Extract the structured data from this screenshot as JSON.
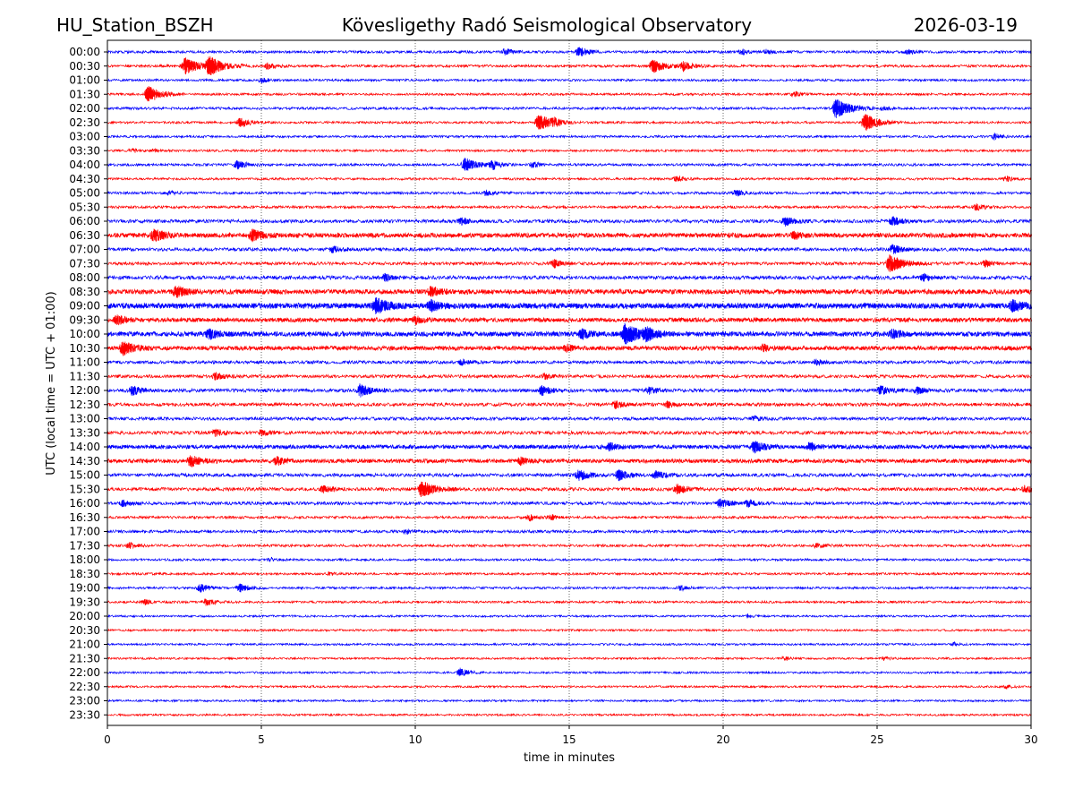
{
  "header": {
    "station": "HU_Station_BSZH",
    "observatory": "Kövesligethy Radó Seismological Observatory",
    "date": "2026-03-19"
  },
  "chart_data": {
    "type": "line",
    "title": "Kövesligethy Radó Seismological Observatory",
    "xlabel": "time in minutes",
    "ylabel": "UTC (local time = UTC + 01:00)",
    "xlim": [
      0,
      30
    ],
    "x_ticks": [
      "0",
      "5",
      "10",
      "15",
      "20",
      "25",
      "30"
    ],
    "x_tick_values": [
      0,
      5,
      10,
      15,
      20,
      25,
      30
    ],
    "vertical_gridlines_at": [
      5,
      10,
      15,
      20,
      25
    ],
    "colors": {
      "even_rows": "#0000ff",
      "odd_rows": "#ff0000"
    },
    "rows": [
      {
        "label": "00:00",
        "noise": 0.2,
        "events": [
          [
            12.9,
            0.6
          ],
          [
            15.3,
            0.9
          ],
          [
            20.6,
            0.5
          ],
          [
            21.4,
            0.4
          ],
          [
            26.0,
            0.4
          ]
        ]
      },
      {
        "label": "00:30",
        "noise": 0.2,
        "events": [
          [
            2.5,
            1.6
          ],
          [
            3.3,
            1.7
          ],
          [
            5.2,
            0.6
          ],
          [
            17.7,
            1.3
          ],
          [
            18.7,
            0.9
          ]
        ]
      },
      {
        "label": "01:00",
        "noise": 0.15,
        "events": [
          [
            5.0,
            0.5
          ]
        ]
      },
      {
        "label": "01:30",
        "noise": 0.15,
        "events": [
          [
            1.3,
            1.6
          ],
          [
            22.3,
            0.5
          ]
        ]
      },
      {
        "label": "02:00",
        "noise": 0.2,
        "events": [
          [
            23.65,
            1.8
          ],
          [
            25.2,
            0.4
          ]
        ]
      },
      {
        "label": "02:30",
        "noise": 0.15,
        "events": [
          [
            4.3,
            0.9
          ],
          [
            14.0,
            1.6
          ],
          [
            14.5,
            0.5
          ],
          [
            24.6,
            1.6
          ]
        ]
      },
      {
        "label": "03:00",
        "noise": 0.15,
        "events": [
          [
            28.8,
            0.6
          ]
        ]
      },
      {
        "label": "03:30",
        "noise": 0.15,
        "events": [
          [
            0.8,
            0.4
          ],
          [
            1.5,
            0.3
          ]
        ]
      },
      {
        "label": "04:00",
        "noise": 0.2,
        "events": [
          [
            4.2,
            0.8
          ],
          [
            11.6,
            1.3
          ],
          [
            12.5,
            0.8
          ],
          [
            13.8,
            0.5
          ]
        ]
      },
      {
        "label": "04:30",
        "noise": 0.15,
        "events": [
          [
            18.5,
            0.6
          ],
          [
            29.2,
            0.5
          ]
        ]
      },
      {
        "label": "05:00",
        "noise": 0.2,
        "events": [
          [
            2.0,
            0.4
          ],
          [
            12.3,
            0.5
          ],
          [
            20.4,
            0.6
          ]
        ]
      },
      {
        "label": "05:30",
        "noise": 0.2,
        "events": [
          [
            28.2,
            0.6
          ]
        ]
      },
      {
        "label": "06:00",
        "noise": 0.35,
        "events": [
          [
            11.5,
            0.6
          ],
          [
            22.0,
            0.8
          ],
          [
            25.5,
            0.8
          ]
        ]
      },
      {
        "label": "06:30",
        "noise": 0.55,
        "events": [
          [
            1.5,
            1.1
          ],
          [
            4.7,
            1.0
          ],
          [
            22.3,
            0.6
          ]
        ]
      },
      {
        "label": "07:00",
        "noise": 0.35,
        "events": [
          [
            7.3,
            0.6
          ],
          [
            25.5,
            0.8
          ]
        ]
      },
      {
        "label": "07:30",
        "noise": 0.3,
        "events": [
          [
            14.5,
            0.7
          ],
          [
            25.4,
            1.6
          ],
          [
            28.5,
            0.6
          ]
        ]
      },
      {
        "label": "08:00",
        "noise": 0.4,
        "events": [
          [
            9.0,
            0.6
          ],
          [
            26.5,
            0.6
          ]
        ]
      },
      {
        "label": "08:30",
        "noise": 0.6,
        "events": [
          [
            2.2,
            1.0
          ],
          [
            10.5,
            0.8
          ]
        ]
      },
      {
        "label": "09:00",
        "noise": 0.7,
        "events": [
          [
            8.7,
            1.4
          ],
          [
            10.5,
            0.9
          ],
          [
            29.4,
            0.9
          ]
        ]
      },
      {
        "label": "09:30",
        "noise": 0.5,
        "events": [
          [
            0.3,
            0.8
          ],
          [
            10.0,
            0.6
          ]
        ]
      },
      {
        "label": "10:00",
        "noise": 0.6,
        "events": [
          [
            3.3,
            0.8
          ],
          [
            15.4,
            0.8
          ],
          [
            16.8,
            1.8
          ],
          [
            17.5,
            1.0
          ],
          [
            25.5,
            0.8
          ]
        ]
      },
      {
        "label": "10:30",
        "noise": 0.5,
        "events": [
          [
            0.5,
            1.2
          ],
          [
            14.9,
            0.6
          ],
          [
            21.3,
            0.6
          ]
        ]
      },
      {
        "label": "11:00",
        "noise": 0.3,
        "events": [
          [
            11.5,
            0.5
          ],
          [
            23.0,
            0.5
          ]
        ]
      },
      {
        "label": "11:30",
        "noise": 0.3,
        "events": [
          [
            3.5,
            0.7
          ],
          [
            14.2,
            0.5
          ]
        ]
      },
      {
        "label": "12:00",
        "noise": 0.35,
        "events": [
          [
            0.8,
            0.8
          ],
          [
            8.2,
            1.1
          ],
          [
            14.1,
            0.8
          ],
          [
            17.6,
            0.6
          ],
          [
            25.1,
            0.8
          ],
          [
            26.3,
            0.6
          ]
        ]
      },
      {
        "label": "12:30",
        "noise": 0.35,
        "events": [
          [
            16.5,
            0.6
          ],
          [
            18.2,
            0.5
          ]
        ]
      },
      {
        "label": "13:00",
        "noise": 0.3,
        "events": [
          [
            21.0,
            0.4
          ]
        ]
      },
      {
        "label": "13:30",
        "noise": 0.35,
        "events": [
          [
            3.5,
            0.6
          ],
          [
            5.0,
            0.5
          ]
        ]
      },
      {
        "label": "14:00",
        "noise": 0.45,
        "events": [
          [
            16.3,
            0.7
          ],
          [
            21.0,
            1.0
          ],
          [
            22.8,
            0.7
          ]
        ]
      },
      {
        "label": "14:30",
        "noise": 0.45,
        "events": [
          [
            2.7,
            1.0
          ],
          [
            5.5,
            0.7
          ],
          [
            13.4,
            0.6
          ]
        ]
      },
      {
        "label": "15:00",
        "noise": 0.35,
        "events": [
          [
            15.3,
            1.0
          ],
          [
            16.6,
            0.9
          ],
          [
            17.8,
            0.7
          ]
        ]
      },
      {
        "label": "15:30",
        "noise": 0.35,
        "events": [
          [
            7.0,
            0.6
          ],
          [
            10.2,
            1.5
          ],
          [
            18.5,
            0.8
          ],
          [
            29.8,
            0.6
          ]
        ]
      },
      {
        "label": "16:00",
        "noise": 0.3,
        "events": [
          [
            0.5,
            0.6
          ],
          [
            19.9,
            0.8
          ],
          [
            20.8,
            0.6
          ]
        ]
      },
      {
        "label": "16:30",
        "noise": 0.2,
        "events": [
          [
            13.7,
            0.6
          ],
          [
            14.4,
            0.5
          ]
        ]
      },
      {
        "label": "17:00",
        "noise": 0.25,
        "events": [
          [
            9.7,
            0.4
          ]
        ]
      },
      {
        "label": "17:30",
        "noise": 0.2,
        "events": [
          [
            0.7,
            0.5
          ],
          [
            23.0,
            0.5
          ]
        ]
      },
      {
        "label": "18:00",
        "noise": 0.15,
        "events": [
          [
            5.3,
            0.3
          ]
        ]
      },
      {
        "label": "18:30",
        "noise": 0.15,
        "events": [
          [
            7.2,
            0.3
          ]
        ]
      },
      {
        "label": "19:00",
        "noise": 0.15,
        "events": [
          [
            3.0,
            0.8
          ],
          [
            4.3,
            0.8
          ],
          [
            18.6,
            0.5
          ]
        ]
      },
      {
        "label": "19:30",
        "noise": 0.15,
        "events": [
          [
            1.2,
            0.5
          ],
          [
            3.2,
            0.7
          ]
        ]
      },
      {
        "label": "20:00",
        "noise": 0.1,
        "events": [
          [
            20.8,
            0.3
          ]
        ]
      },
      {
        "label": "20:30",
        "noise": 0.1,
        "events": []
      },
      {
        "label": "21:00",
        "noise": 0.1,
        "events": [
          [
            27.5,
            0.3
          ]
        ]
      },
      {
        "label": "21:30",
        "noise": 0.1,
        "events": [
          [
            22.0,
            0.3
          ],
          [
            25.2,
            0.3
          ]
        ]
      },
      {
        "label": "22:00",
        "noise": 0.1,
        "events": [
          [
            11.45,
            0.8
          ]
        ]
      },
      {
        "label": "22:30",
        "noise": 0.1,
        "events": [
          [
            29.2,
            0.3
          ]
        ]
      },
      {
        "label": "23:00",
        "noise": 0.1,
        "events": []
      },
      {
        "label": "23:30",
        "noise": 0.1,
        "events": []
      }
    ]
  }
}
